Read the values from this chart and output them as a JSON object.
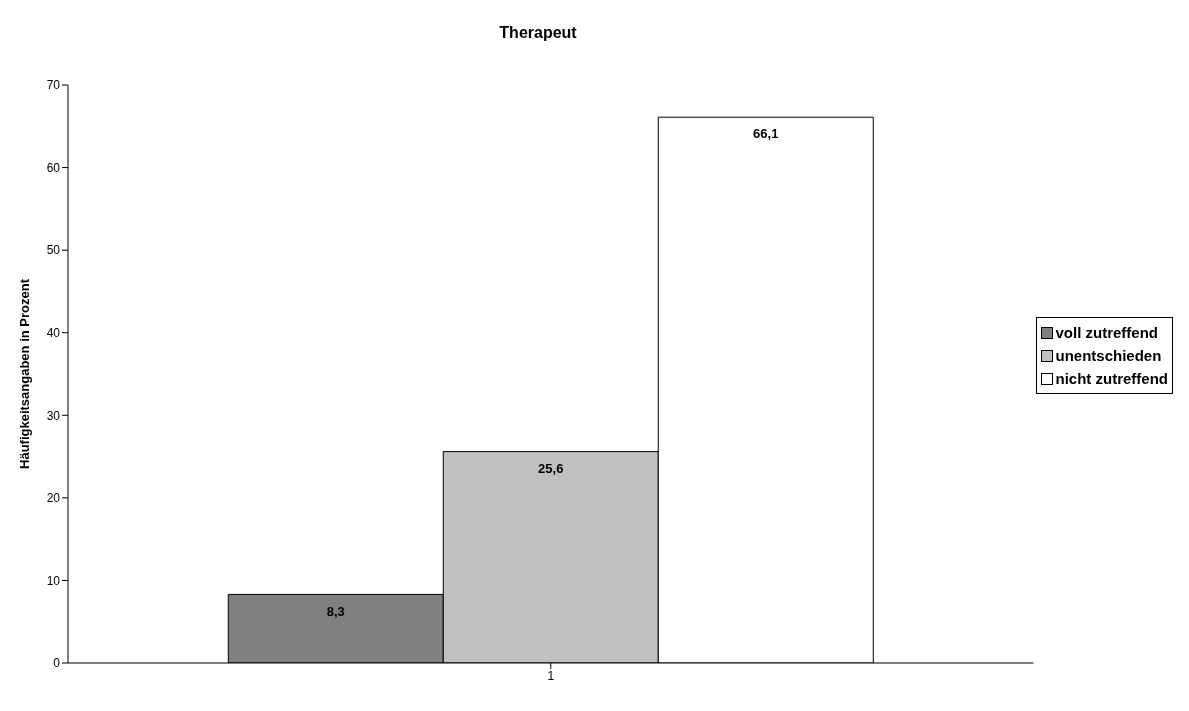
{
  "chart_data": {
    "type": "bar",
    "title": "Therapeut",
    "ylabel": "Häufigkeitsangaben in Prozent",
    "categories": [
      "1"
    ],
    "series": [
      {
        "name": "voll zutreffend",
        "color": "#808080",
        "values": [
          8.3
        ],
        "value_labels": [
          "8,3"
        ]
      },
      {
        "name": "unentschieden",
        "color": "#c0c0c0",
        "values": [
          25.6
        ],
        "value_labels": [
          "25,6"
        ]
      },
      {
        "name": "nicht zutreffend",
        "color": "#ffffff",
        "values": [
          66.1
        ],
        "value_labels": [
          "66,1"
        ]
      }
    ],
    "ylim": [
      0,
      70
    ],
    "yticks": [
      0,
      10,
      20,
      30,
      40,
      50,
      60,
      70
    ],
    "grid": false,
    "legend": "right"
  }
}
